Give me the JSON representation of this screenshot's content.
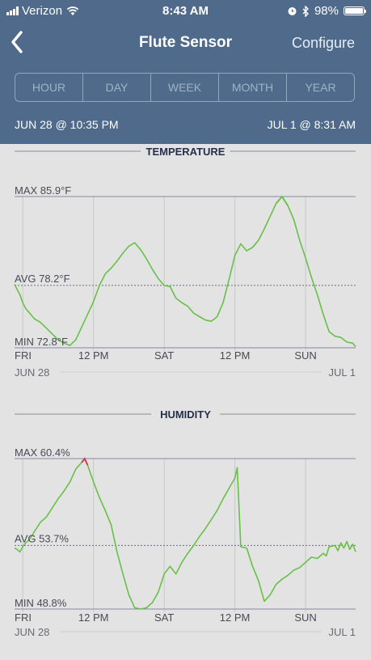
{
  "status_bar": {
    "carrier": "Verizon",
    "time": "8:43 AM",
    "battery": "98%",
    "battery_level": 0.98
  },
  "nav": {
    "title": "Flute Sensor",
    "configure_label": "Configure"
  },
  "time_range_options": [
    "HOUR",
    "DAY",
    "WEEK",
    "MONTH",
    "YEAR"
  ],
  "range": {
    "start": "JUN 28 @ 10:35 PM",
    "end": "JUL 1 @ 8:31 AM"
  },
  "colors": {
    "header": "#4f6a8a",
    "line": "#66c147",
    "max_marker": "#d9314a",
    "background": "#e3e3e3"
  },
  "chart_data": [
    {
      "type": "line",
      "title": "TEMPERATURE",
      "max_label": "MAX 85.9°F",
      "avg_label": "AVG 78.2°F",
      "min_label": "MIN 72.8°F",
      "max_value": 85.9,
      "avg_value": 78.2,
      "min_value": 72.8,
      "ylim": [
        72.8,
        85.9
      ],
      "x_tick_labels": [
        "FRI",
        "12 PM",
        "SAT",
        "12 PM",
        "SUN"
      ],
      "x_tick_hours": [
        0,
        12,
        24,
        36,
        48
      ],
      "x_start_label": "JUN 28",
      "x_end_label": "JUL 1",
      "xlim_hours": [
        -1.4,
        56.5
      ],
      "series": [
        {
          "x": [
            -1.4,
            -1.0,
            -0.5,
            0.0,
            0.5,
            1.0,
            1.5,
            2.0,
            3.0,
            4.0,
            5.0,
            6.0,
            7.0,
            8.0,
            9.0,
            10.0,
            11.0,
            12.0,
            13.0,
            14.0,
            15.0,
            16.0,
            17.0,
            18.0,
            19.0,
            20.0,
            21.0,
            22.0,
            23.0,
            24.0,
            25.0,
            26.0,
            27.0,
            28.0,
            29.0,
            30.0,
            31.0,
            32.0,
            33.0,
            34.0,
            35.0,
            36.0,
            37.0,
            38.0,
            39.0,
            40.0,
            41.0,
            42.0,
            43.0,
            44.0,
            45.0,
            46.0,
            47.0,
            48.0,
            49.0,
            50.0,
            51.0,
            52.0,
            53.0,
            54.0,
            55.0,
            56.0,
            56.5
          ],
          "values": [
            78.3,
            77.9,
            77.4,
            76.7,
            76.2,
            75.9,
            75.6,
            75.3,
            75.0,
            74.5,
            74.0,
            73.5,
            73.2,
            73.0,
            73.5,
            74.6,
            75.7,
            76.8,
            78.2,
            79.2,
            79.7,
            80.3,
            81.0,
            81.6,
            81.9,
            81.3,
            80.5,
            79.6,
            78.8,
            78.2,
            78.1,
            77.1,
            76.7,
            76.4,
            75.8,
            75.5,
            75.2,
            75.1,
            75.5,
            76.7,
            78.7,
            80.8,
            81.8,
            81.2,
            81.5,
            82.1,
            83.1,
            84.2,
            85.3,
            85.9,
            85.1,
            83.9,
            82.1,
            80.6,
            78.9,
            77.4,
            75.7,
            74.2,
            73.8,
            73.7,
            73.3,
            73.2,
            72.9
          ]
        }
      ]
    },
    {
      "type": "line",
      "title": "HUMIDITY",
      "max_label": "MAX 60.4%",
      "avg_label": "AVG 53.7%",
      "min_label": "MIN 48.8%",
      "max_value": 60.4,
      "avg_value": 53.7,
      "min_value": 48.8,
      "ylim": [
        48.8,
        60.4
      ],
      "x_tick_labels": [
        "FRI",
        "12 PM",
        "SAT",
        "12 PM",
        "SUN"
      ],
      "x_tick_hours": [
        0,
        12,
        24,
        36,
        48
      ],
      "x_start_label": "JUN 28",
      "x_end_label": "JUL 1",
      "xlim_hours": [
        -1.4,
        56.5
      ],
      "series": [
        {
          "x": [
            -1.4,
            -1.0,
            -0.5,
            0.0,
            0.5,
            1.0,
            1.5,
            2.0,
            3.0,
            4.0,
            5.0,
            6.0,
            7.0,
            8.0,
            9.0,
            10.0,
            10.5,
            11.0,
            12.0,
            13.0,
            14.0,
            15.0,
            16.0,
            17.0,
            18.0,
            19.0,
            20.0,
            21.0,
            22.0,
            23.0,
            24.0,
            25.0,
            26.0,
            27.0,
            28.0,
            29.0,
            30.0,
            31.0,
            32.0,
            33.0,
            34.0,
            35.0,
            36.0,
            36.4,
            37.0,
            38.0,
            39.0,
            40.0,
            41.0,
            42.0,
            43.0,
            44.0,
            45.0,
            46.0,
            47.0,
            48.0,
            49.0,
            50.0,
            51.0,
            51.5,
            52.0,
            53.0,
            53.5,
            54.0,
            54.5,
            55.0,
            55.5,
            56.0,
            56.5
          ],
          "values": [
            53.5,
            53.4,
            53.2,
            53.6,
            53.9,
            54.1,
            54.4,
            54.8,
            55.5,
            55.9,
            56.6,
            57.3,
            57.9,
            58.6,
            59.6,
            60.1,
            60.4,
            59.9,
            58.6,
            57.4,
            56.4,
            55.3,
            53.2,
            51.5,
            49.9,
            48.9,
            48.8,
            48.9,
            49.3,
            50.1,
            51.5,
            52.1,
            51.5,
            52.4,
            53.1,
            53.7,
            54.4,
            55.0,
            55.7,
            56.4,
            57.3,
            58.1,
            58.9,
            59.7,
            53.6,
            53.5,
            52.1,
            51.0,
            49.4,
            49.9,
            50.7,
            51.1,
            51.4,
            51.8,
            52.0,
            52.4,
            52.8,
            52.7,
            53.1,
            52.9,
            53.6,
            53.7,
            53.3,
            53.9,
            53.5,
            54.0,
            53.4,
            53.8,
            53.2
          ]
        }
      ]
    }
  ]
}
